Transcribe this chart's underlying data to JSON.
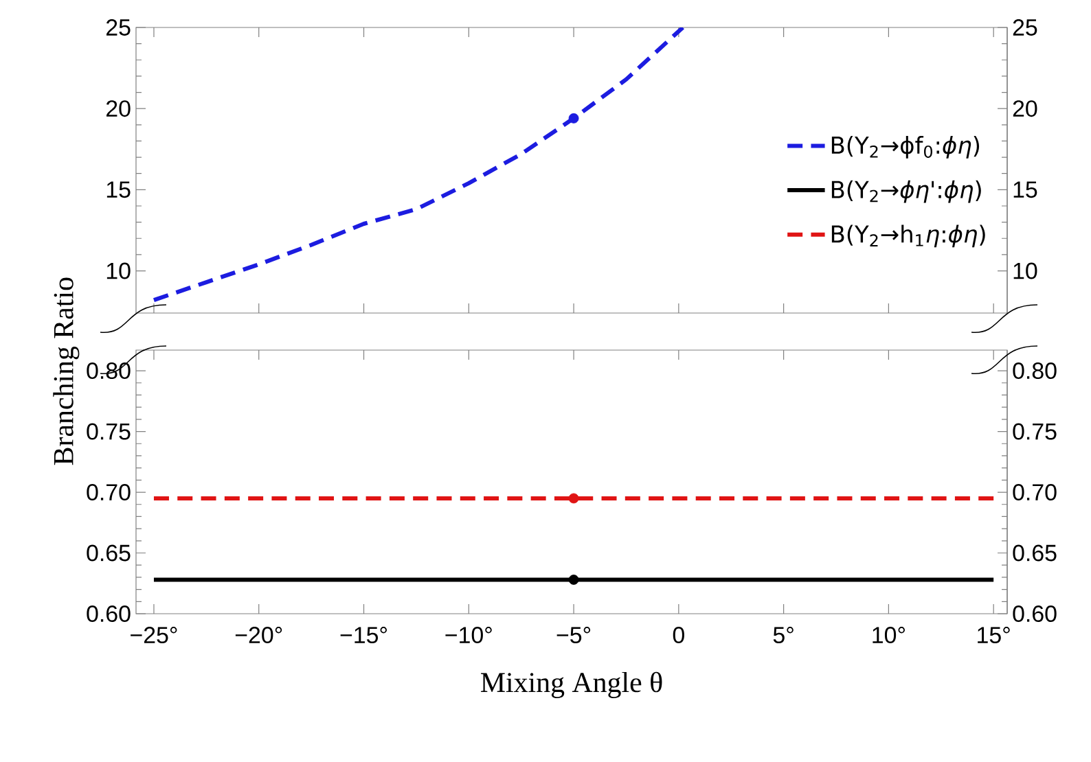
{
  "chart_data": [
    {
      "type": "line",
      "xlim": [
        -25.85,
        15.65
      ],
      "xticks": [
        {
          "value": -25,
          "label": null
        },
        {
          "value": -20,
          "label": null
        },
        {
          "value": -15,
          "label": null
        },
        {
          "value": -10,
          "label": null
        },
        {
          "value": -5,
          "label": null
        },
        {
          "value": 0,
          "label": null
        },
        {
          "value": 5,
          "label": null
        },
        {
          "value": 10,
          "label": null
        },
        {
          "value": 15,
          "label": null
        }
      ],
      "ylim": [
        7.4,
        25
      ],
      "yticks": [
        10,
        15,
        20,
        25
      ],
      "y2lim": [
        7.4,
        25
      ],
      "y2ticks": [
        10,
        15,
        20,
        25
      ],
      "tick_labels": "y",
      "legend": "right",
      "series": [
        {
          "name": "B(Υ$_{2}$→ϕf$_{0}$:*ϕη*)",
          "line_style": "dashed",
          "color": "#1c1ce0",
          "x": [
            -25,
            -22.5,
            -20,
            -17.5,
            -15,
            -12.5,
            -10,
            -7.5,
            -5,
            -2.5,
            0.2
          ],
          "values": [
            8.2,
            9.3,
            10.4,
            11.6,
            12.9,
            13.8,
            15.4,
            17.2,
            19.4,
            21.8,
            25
          ]
        },
        {
          "type": "scatter",
          "marker": "circle",
          "color": "#1c1ce0",
          "x": [
            -5
          ],
          "values": [
            19.4
          ]
        }
      ]
    },
    {
      "type": "line",
      "xlabel": "Mixing Angle θ",
      "ylabel": "Branching Ratio",
      "xlim": [
        -25.85,
        15.65
      ],
      "xticks": [
        {
          "value": -25,
          "label": "−25°"
        },
        {
          "value": -20,
          "label": "−20°"
        },
        {
          "value": -15,
          "label": "−15°"
        },
        {
          "value": -10,
          "label": "−10°"
        },
        {
          "value": -5,
          "label": "−5°"
        },
        {
          "value": 0,
          "label": "0"
        },
        {
          "value": 5,
          "label": "5°"
        },
        {
          "value": 10,
          "label": "10°"
        },
        {
          "value": 15,
          "label": "15°"
        }
      ],
      "ylim": [
        0.6,
        0.817
      ],
      "yticks": [
        {
          "value": 0.6,
          "label": "0.60"
        },
        {
          "value": 0.65,
          "label": "0.65"
        },
        {
          "value": 0.7,
          "label": "0.70"
        },
        {
          "value": 0.75,
          "label": "0.75"
        },
        {
          "value": 0.8,
          "label": "0.80"
        }
      ],
      "y2lim": [
        0.6,
        0.817
      ],
      "y2ticks": [
        {
          "value": 0.6,
          "label": "0.60"
        },
        {
          "value": 0.65,
          "label": "0.65"
        },
        {
          "value": 0.7,
          "label": "0.70"
        },
        {
          "value": 0.75,
          "label": "0.75"
        },
        {
          "value": 0.8,
          "label": "0.80"
        }
      ],
      "series": [
        {
          "name": "B(Υ$_{2}$→*ϕη*':*ϕη*)",
          "line_style": "solid",
          "color": "#000000",
          "x": [
            -25,
            15
          ],
          "values": [
            0.628,
            0.628
          ]
        },
        {
          "name": "B(Υ$_{2}$→h$_{1}$*η*:*ϕη*)",
          "line_style": "dashed",
          "color": "#e01414",
          "x": [
            -25,
            15
          ],
          "values": [
            0.695,
            0.695
          ]
        },
        {
          "type": "scatter",
          "marker": "circle",
          "color": "#000000",
          "x": [
            -5
          ],
          "values": [
            0.628
          ]
        },
        {
          "type": "scatter",
          "marker": "circle",
          "color": "#e01414",
          "x": [
            -5
          ],
          "values": [
            0.695
          ]
        }
      ]
    }
  ]
}
